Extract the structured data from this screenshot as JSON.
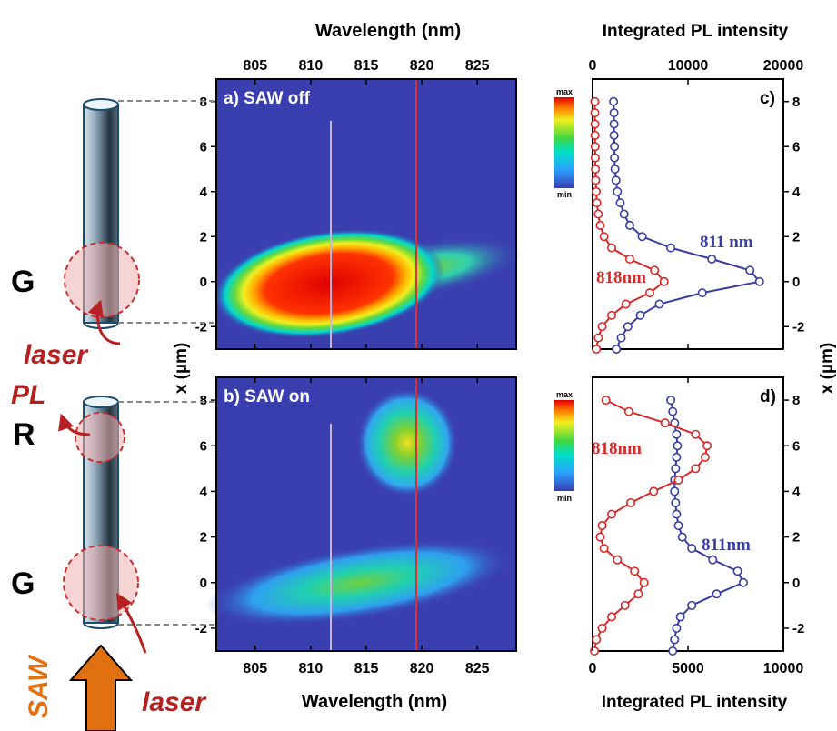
{
  "labels": {
    "wavelength_top": "Wavelength (nm)",
    "wavelength_bottom": "Wavelength (nm)",
    "intensity_top": "Integrated PL intensity",
    "intensity_bottom": "Integrated PL intensity",
    "x_axis_left": "x (µm)",
    "x_axis_right": "x (µm)",
    "panel_a": "a) SAW off",
    "panel_b": "b) SAW on",
    "panel_c": "c)",
    "panel_d": "d)",
    "scale_max": "max",
    "scale_min": "min",
    "G_top": "G",
    "G_bottom": "G",
    "R": "R",
    "laser_top": "laser",
    "laser_bottom": "laser",
    "PL": "PL",
    "SAW": "SAW",
    "c_blue": "811 nm",
    "c_red": "818nm",
    "d_red": "818nm",
    "d_blue": "811nm"
  },
  "colors": {
    "blue_series": "#3a3ea0",
    "red_series": "#d92a2a",
    "arrow": "#e07010",
    "annot_red": "#b52020"
  },
  "chart_data": [
    {
      "type": "heatmap",
      "title": "a) SAW off",
      "xlabel": "Wavelength (nm)",
      "ylabel": "x (µm)",
      "xlim": [
        801.5,
        828.5
      ],
      "ylim": [
        -3,
        9
      ],
      "xticks": [
        805,
        810,
        815,
        820,
        825
      ],
      "yticks": [
        -2,
        0,
        2,
        4,
        6,
        8
      ],
      "markers_nm": [
        811,
        818
      ],
      "colorscale": [
        "min",
        "max"
      ],
      "blobs": [
        {
          "center_nm": 812.5,
          "center_x": 0.0,
          "note": "broad emission spot"
        }
      ]
    },
    {
      "type": "heatmap",
      "title": "b) SAW on",
      "xlabel": "Wavelength (nm)",
      "ylabel": "x (µm)",
      "xlim": [
        801.5,
        828.5
      ],
      "ylim": [
        -3,
        9
      ],
      "xticks": [
        805,
        810,
        815,
        820,
        825
      ],
      "yticks": [
        -2,
        0,
        2,
        4,
        6,
        8
      ],
      "markers_nm": [
        811,
        818
      ],
      "colorscale": [
        "min",
        "max"
      ],
      "blobs": [
        {
          "center_nm": 817.5,
          "center_x": 6.4
        },
        {
          "center_nm": 810.5,
          "center_x": -0.3
        }
      ]
    },
    {
      "type": "line",
      "title": "c)",
      "xlabel": "Integrated PL intensity",
      "ylabel": "x (µm)",
      "xlim": [
        0,
        20000
      ],
      "ylim": [
        -3,
        9
      ],
      "xticks": [
        0,
        10000,
        20000
      ],
      "yticks": [
        -2,
        0,
        2,
        4,
        6,
        8
      ],
      "x": [
        -3.0,
        -2.5,
        -2.0,
        -1.5,
        -1.0,
        -0.5,
        0.0,
        0.5,
        1.0,
        1.5,
        2.0,
        2.5,
        3.0,
        3.5,
        4.0,
        4.5,
        5.0,
        5.5,
        6.0,
        6.5,
        7.0,
        7.5,
        8.0
      ],
      "series": [
        {
          "name": "811 nm",
          "values": [
            2500,
            3000,
            3700,
            5000,
            7000,
            11500,
            17500,
            16500,
            12500,
            8200,
            5200,
            3900,
            3300,
            2900,
            2600,
            2450,
            2350,
            2300,
            2300,
            2250,
            2250,
            2250,
            2200
          ]
        },
        {
          "name": "818nm",
          "values": [
            400,
            600,
            1000,
            2000,
            3500,
            6000,
            7500,
            6500,
            3900,
            2000,
            1200,
            800,
            600,
            450,
            380,
            330,
            300,
            280,
            270,
            260,
            250,
            240,
            240
          ]
        }
      ]
    },
    {
      "type": "line",
      "title": "d)",
      "xlabel": "Integrated PL intensity",
      "ylabel": "x (µm)",
      "xlim": [
        0,
        10000
      ],
      "ylim": [
        -3,
        9
      ],
      "xticks": [
        0,
        5000,
        10000
      ],
      "yticks": [
        -2,
        0,
        2,
        4,
        6,
        8
      ],
      "x": [
        -3.0,
        -2.5,
        -2.0,
        -1.5,
        -1.0,
        -0.5,
        0.0,
        0.5,
        1.0,
        1.5,
        2.0,
        2.5,
        3.0,
        3.5,
        4.0,
        4.5,
        5.0,
        5.5,
        6.0,
        6.5,
        7.0,
        7.5,
        8.0
      ],
      "series": [
        {
          "name": "811nm",
          "values": [
            4200,
            4300,
            4400,
            4600,
            5200,
            6500,
            7900,
            7600,
            6300,
            5200,
            4700,
            4500,
            4400,
            4350,
            4300,
            4300,
            4350,
            4400,
            4450,
            4400,
            4300,
            4200,
            4100
          ]
        },
        {
          "name": "818nm",
          "values": [
            100,
            200,
            500,
            1000,
            1700,
            2400,
            2700,
            2200,
            1300,
            600,
            400,
            500,
            1000,
            2000,
            3200,
            4500,
            5400,
            5900,
            6000,
            5400,
            3800,
            1900,
            700
          ]
        }
      ]
    }
  ]
}
